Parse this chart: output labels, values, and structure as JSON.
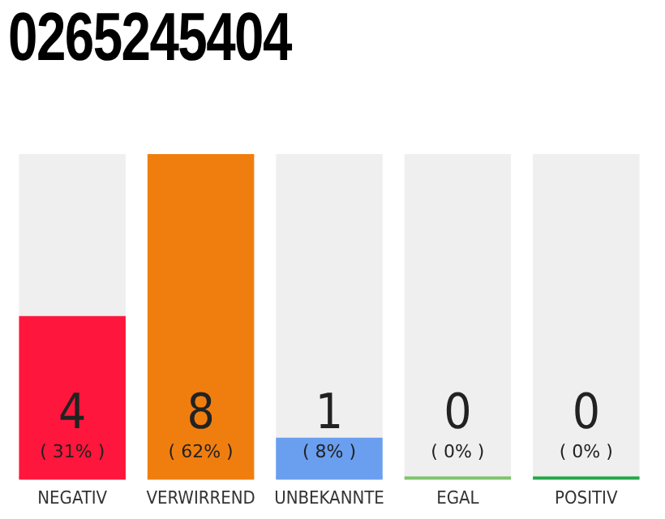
{
  "chart_data": {
    "type": "bar",
    "title": "0265245404",
    "categories": [
      "NEGATIV",
      "VERWIRREND",
      "UNBEKANNTE",
      "EGAL",
      "POSITIV"
    ],
    "values": [
      4,
      8,
      1,
      0,
      0
    ],
    "colors": [
      "#ff163c",
      "#f07e0e",
      "#6a9ff0",
      "#7dc46a",
      "#22a84a"
    ],
    "data_labels": true,
    "annotations": [
      "( 31% )",
      "( 62% )",
      "( 8% )",
      "( 0% )",
      "( 0% )"
    ],
    "tick_labels": "x",
    "grid": false,
    "legend": false
  }
}
